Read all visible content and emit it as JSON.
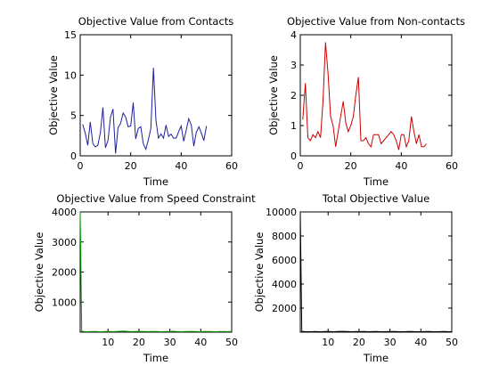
{
  "chart_data": [
    {
      "type": "line",
      "title": "Objective Value from Contacts",
      "xlabel": "Time",
      "ylabel": "Objective Value",
      "xlim": [
        0,
        60
      ],
      "ylim": [
        0,
        15
      ],
      "xticks": [
        0,
        20,
        40,
        60
      ],
      "yticks": [
        0,
        5,
        10,
        15
      ],
      "color": "#1f1fa0",
      "series": [
        {
          "x": [
            1,
            2,
            3,
            4,
            5,
            6,
            7,
            8,
            9,
            10,
            11,
            12,
            13,
            14,
            15,
            16,
            17,
            18,
            19,
            20,
            21,
            22,
            23,
            24,
            25,
            26,
            27,
            28,
            29,
            30,
            31,
            32,
            33,
            34,
            35,
            36,
            37,
            38,
            39,
            40,
            41,
            42,
            43,
            44,
            45,
            46,
            47,
            48,
            49,
            50
          ],
          "y": [
            3.9,
            2.8,
            1.3,
            4.2,
            1.5,
            1.1,
            1.3,
            2.9,
            6.0,
            1.0,
            1.9,
            4.8,
            5.8,
            0.3,
            3.5,
            4.0,
            5.3,
            4.8,
            3.6,
            3.7,
            6.6,
            2.1,
            3.4,
            3.6,
            1.5,
            0.8,
            2.0,
            3.4,
            10.9,
            4.4,
            2.2,
            2.7,
            2.2,
            3.8,
            2.4,
            2.7,
            2.2,
            2.2,
            3.0,
            3.7,
            1.8,
            3.2,
            4.6,
            3.8,
            1.2,
            2.9,
            3.6,
            2.8,
            1.9,
            3.7
          ]
        }
      ]
    },
    {
      "type": "line",
      "title": "Objective Value from Non-contacts",
      "xlabel": "Time",
      "ylabel": "Objective Value",
      "xlim": [
        0,
        60
      ],
      "ylim": [
        0,
        4
      ],
      "xticks": [
        0,
        20,
        40,
        60
      ],
      "yticks": [
        0,
        1,
        2,
        3,
        4
      ],
      "color": "#cc0000",
      "series": [
        {
          "x": [
            1,
            2,
            3,
            4,
            5,
            6,
            7,
            8,
            9,
            10,
            11,
            12,
            13,
            14,
            15,
            16,
            17,
            18,
            19,
            20,
            21,
            22,
            23,
            24,
            25,
            26,
            27,
            28,
            29,
            30,
            31,
            32,
            33,
            34,
            35,
            36,
            37,
            38,
            39,
            40,
            41,
            42,
            43,
            44,
            45,
            46,
            47,
            48,
            49,
            50
          ],
          "y": [
            1.2,
            2.4,
            0.6,
            0.5,
            0.7,
            0.6,
            0.8,
            0.6,
            1.8,
            3.75,
            2.7,
            1.3,
            1.0,
            0.3,
            0.8,
            1.3,
            1.8,
            1.1,
            0.8,
            1.0,
            1.3,
            2.0,
            2.6,
            0.5,
            0.5,
            0.6,
            0.4,
            0.3,
            0.7,
            0.7,
            0.7,
            0.4,
            0.5,
            0.6,
            0.7,
            0.8,
            0.7,
            0.5,
            0.2,
            0.7,
            0.7,
            0.3,
            0.5,
            1.3,
            0.8,
            0.4,
            0.7,
            0.3,
            0.3,
            0.4
          ]
        }
      ]
    },
    {
      "type": "line",
      "title": "Objective Value from Speed Constraint",
      "xlabel": "Time",
      "ylabel": "Objective Value",
      "xlim": [
        1,
        50
      ],
      "ylim": [
        0,
        4000
      ],
      "xticks": [
        10,
        20,
        30,
        40,
        50
      ],
      "yticks": [
        1000,
        2000,
        3000,
        4000
      ],
      "color": "#009900",
      "series": [
        {
          "x": [
            1,
            1.5,
            2,
            3,
            4,
            5,
            6,
            7,
            8,
            9,
            10,
            11,
            12,
            13,
            14,
            15,
            16,
            17,
            18,
            19,
            20,
            21,
            22,
            23,
            24,
            25,
            26,
            27,
            28,
            29,
            30,
            31,
            32,
            33,
            34,
            35,
            36,
            37,
            38,
            39,
            40,
            41,
            42,
            43,
            44,
            45,
            46,
            47,
            48,
            49,
            50
          ],
          "y": [
            4000,
            30,
            20,
            15,
            18,
            22,
            25,
            18,
            15,
            20,
            28,
            22,
            18,
            25,
            30,
            35,
            28,
            20,
            18,
            22,
            20,
            25,
            22,
            18,
            20,
            25,
            22,
            15,
            18,
            20,
            25,
            30,
            22,
            18,
            15,
            20,
            25,
            28,
            20,
            18,
            15,
            20,
            25,
            22,
            18,
            15,
            20,
            25,
            22,
            18,
            20
          ]
        }
      ]
    },
    {
      "type": "line",
      "title": "Total Objective Value",
      "xlabel": "Time",
      "ylabel": "Objective Value",
      "xlim": [
        1,
        50
      ],
      "ylim": [
        0,
        10000
      ],
      "xticks": [
        10,
        20,
        30,
        40,
        50
      ],
      "yticks": [
        2000,
        4000,
        6000,
        8000,
        10000
      ],
      "color": "#000000",
      "series": [
        {
          "x": [
            1,
            1.5,
            2,
            3,
            4,
            5,
            6,
            7,
            8,
            9,
            10,
            11,
            12,
            13,
            14,
            15,
            16,
            17,
            18,
            19,
            20,
            21,
            22,
            23,
            24,
            25,
            26,
            27,
            28,
            29,
            30,
            31,
            32,
            33,
            34,
            35,
            36,
            37,
            38,
            39,
            40,
            41,
            42,
            43,
            44,
            45,
            46,
            47,
            48,
            49,
            50
          ],
          "y": [
            10000,
            60,
            50,
            40,
            35,
            45,
            55,
            40,
            35,
            50,
            60,
            45,
            40,
            55,
            65,
            70,
            60,
            45,
            40,
            50,
            45,
            55,
            50,
            40,
            45,
            55,
            50,
            35,
            40,
            45,
            55,
            60,
            50,
            40,
            35,
            45,
            55,
            60,
            45,
            40,
            35,
            45,
            55,
            50,
            40,
            35,
            45,
            55,
            50,
            40,
            45
          ]
        }
      ]
    }
  ]
}
